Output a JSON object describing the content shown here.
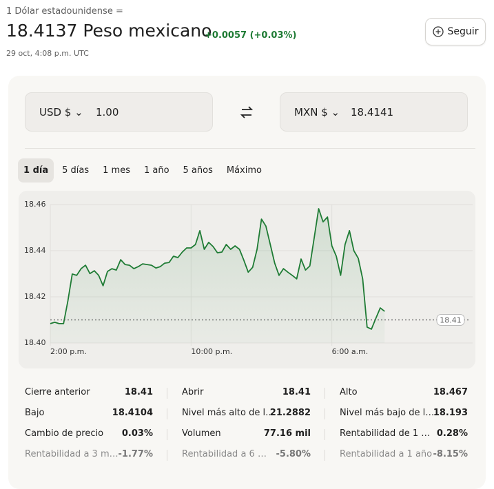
{
  "header": {
    "base": "1 Dólar estadounidense =",
    "rate": "18.4137 Peso mexicano",
    "change": "+0.0057 (+0.03%)",
    "timestamp": "29 oct, 4:08 p.m. UTC",
    "follow": "Seguir"
  },
  "converter": {
    "from_currency": "USD $",
    "from_amount": "1.00",
    "to_currency": "MXN $",
    "to_amount": "18.4141"
  },
  "tabs": [
    "1 día",
    "5 días",
    "1 mes",
    "1 año",
    "5 años",
    "Máximo"
  ],
  "chart_data": {
    "type": "line",
    "x": [
      14,
      14.25,
      14.5,
      14.75,
      15,
      15.25,
      15.5,
      15.75,
      16,
      16.25,
      16.5,
      16.75,
      17,
      17.25,
      17.5,
      17.75,
      18,
      18.25,
      18.5,
      18.75,
      19,
      19.25,
      19.5,
      19.75,
      20,
      20.25,
      20.5,
      20.75,
      21,
      21.25,
      21.5,
      21.75,
      22,
      22.25,
      22.5,
      22.75,
      23,
      23.25,
      23.5,
      23.75,
      24,
      24.25,
      24.5,
      24.75,
      25,
      25.25,
      25.5,
      25.75,
      26,
      26.25,
      26.5,
      26.75,
      27,
      27.25,
      27.5,
      27.75,
      28,
      28.25,
      28.5,
      28.75,
      29,
      29.25,
      29.5,
      29.75,
      30,
      30.25,
      30.5,
      30.75,
      31,
      31.25,
      31.5,
      31.75,
      32,
      32.25,
      32.5,
      32.75,
      33
    ],
    "series": [
      {
        "color": "#1e7b34",
        "values": [
          18.4084,
          18.409,
          18.4084,
          18.4084,
          18.4182,
          18.4299,
          18.4293,
          18.4322,
          18.4337,
          18.4301,
          18.4313,
          18.4293,
          18.4248,
          18.431,
          18.4322,
          18.4316,
          18.4361,
          18.434,
          18.4337,
          18.4322,
          18.4331,
          18.4343,
          18.434,
          18.4337,
          18.4325,
          18.4331,
          18.4346,
          18.4349,
          18.4376,
          18.437,
          18.4394,
          18.4412,
          18.4412,
          18.4427,
          18.4487,
          18.4406,
          18.4436,
          18.4418,
          18.4391,
          18.4394,
          18.4427,
          18.4406,
          18.4421,
          18.4406,
          18.4358,
          18.4307,
          18.4328,
          18.4406,
          18.4537,
          18.4507,
          18.4427,
          18.4346,
          18.4293,
          18.4322,
          18.4307,
          18.4293,
          18.4278,
          18.4364,
          18.4316,
          18.4334,
          18.4457,
          18.4582,
          18.4525,
          18.4546,
          18.4421,
          18.4376,
          18.4293,
          18.4427,
          18.4487,
          18.44,
          18.4367,
          18.4278,
          18.4069,
          18.406,
          18.4107,
          18.4152,
          18.4137
        ]
      }
    ],
    "xlim": [
      14,
      38
    ],
    "xticks": [
      {
        "value": 14,
        "label": "2:00 p.m."
      },
      {
        "value": 22,
        "label": "10:00 p.m."
      },
      {
        "value": 30,
        "label": "6:00 a.m."
      }
    ],
    "ylim": [
      18.4,
      18.46
    ],
    "yticks": [
      18.46,
      18.44,
      18.42,
      {
        "value": 18.4,
        "label": "18.40"
      }
    ],
    "previous_close": 18.41,
    "grid": true
  },
  "stats": [
    {
      "label": "Cierre anterior",
      "value": "18.41"
    },
    {
      "label": "Abrir",
      "value": "18.41"
    },
    {
      "label": "Alto",
      "value": "18.467"
    },
    {
      "label": "Bajo",
      "value": "18.4104"
    },
    {
      "label": "Nivel más alto de l…",
      "value": "21.2882"
    },
    {
      "label": "Nivel más bajo de l…",
      "value": "18.193"
    },
    {
      "label": "Cambio de precio",
      "value": "0.03%"
    },
    {
      "label": "Volumen",
      "value": "77.16 mil"
    },
    {
      "label": "Rentabilidad de 1 …",
      "value": "0.28%"
    },
    {
      "label": "Rentabilidad a 3 m…",
      "value": "-1.77%"
    },
    {
      "label": "Rentabilidad a 6 …",
      "value": "-5.80%"
    },
    {
      "label": "Rentabilidad a 1 año",
      "value": "-8.15%"
    }
  ]
}
